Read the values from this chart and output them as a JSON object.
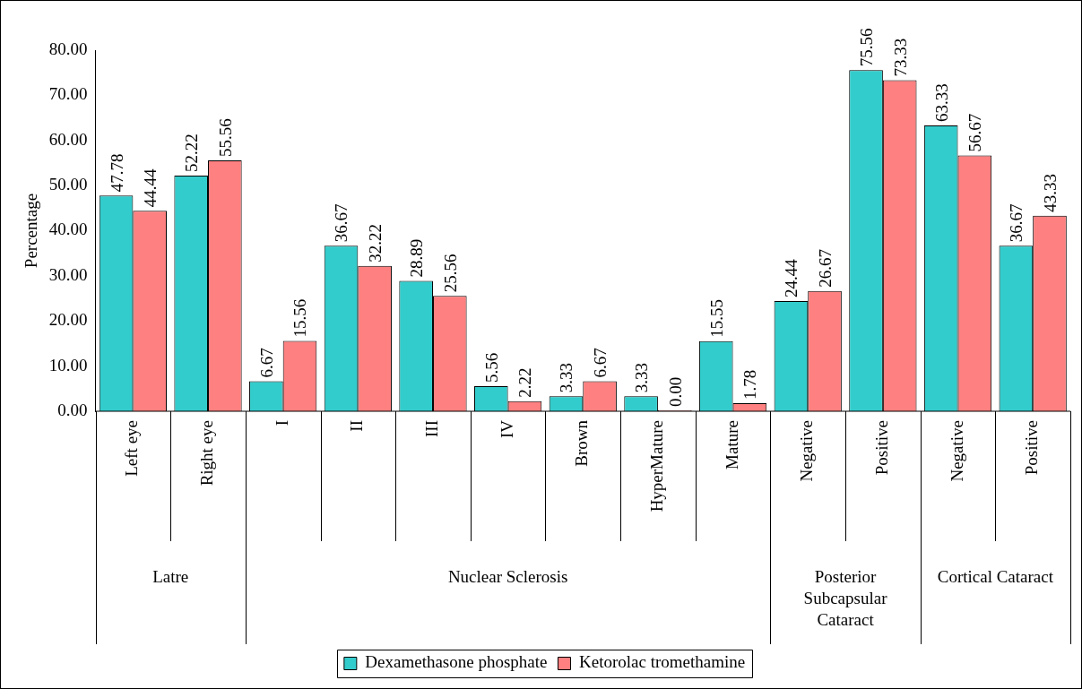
{
  "chart_data": {
    "type": "bar",
    "ylabel": "Percentage",
    "categories": [
      "Left eye",
      "Right eye",
      "I",
      "II",
      "III",
      "IV",
      "Brown",
      "HyperMature",
      "Mature",
      "Negative",
      "Positive",
      "Negative",
      "Positive"
    ],
    "series": [
      {
        "name": "Dexamethasone phosphate",
        "color": "#33cccc",
        "values": [
          47.78,
          52.22,
          6.67,
          36.67,
          28.89,
          5.56,
          3.33,
          3.33,
          15.55,
          24.44,
          75.56,
          63.33,
          36.67
        ],
        "value_labels": [
          "47.78",
          "52.22",
          "6.67",
          "36.67",
          "28.89",
          "5.56",
          "3.33",
          "3.33",
          "15.55",
          "24.44",
          "75.56",
          "63.33",
          "36.67"
        ]
      },
      {
        "name": "Ketorolac tromethamine",
        "color": "#ff8080",
        "values": [
          44.44,
          55.56,
          15.56,
          32.22,
          25.56,
          2.22,
          6.67,
          0,
          1.78,
          26.67,
          73.33,
          56.67,
          43.33
        ],
        "value_labels": [
          "44.44",
          "55.56",
          "15.56",
          "32.22",
          "25.56",
          "2.22",
          "6.67",
          "0.00",
          "1.78",
          "26.67",
          "73.33",
          "56.67",
          "43.33"
        ]
      }
    ],
    "ylim": [
      0,
      80
    ],
    "yticks": [
      {
        "value": 0,
        "label": "0.00"
      },
      {
        "value": 10,
        "label": "10.00"
      },
      {
        "value": 20,
        "label": "20.00"
      },
      {
        "value": 30,
        "label": "30.00"
      },
      {
        "value": 40,
        "label": "40.00"
      },
      {
        "value": 50,
        "label": "50.00"
      },
      {
        "value": 60,
        "label": "60.00"
      },
      {
        "value": 70,
        "label": "70.00"
      },
      {
        "value": 80,
        "label": "80.00"
      }
    ],
    "annotations": [
      "Latre",
      "Nuclear Sclerosis",
      "Posterior Subcapsular Cataract",
      "Cortical Cataract"
    ],
    "grid": false,
    "legend": "bottom"
  }
}
